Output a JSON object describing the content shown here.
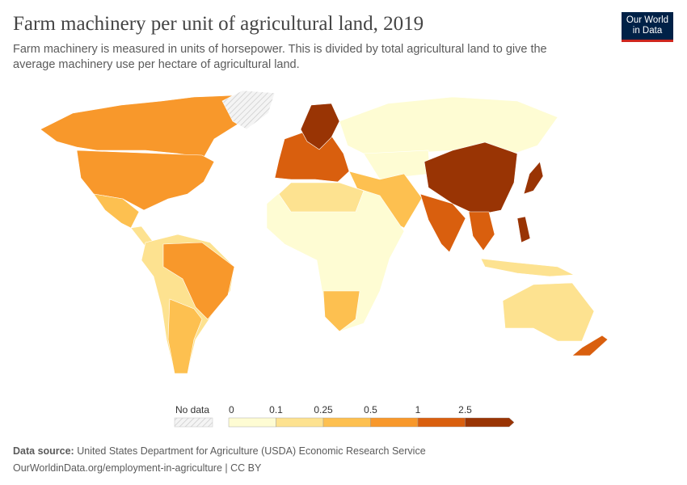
{
  "header": {
    "title": "Farm machinery per unit of agricultural land, 2019",
    "subtitle": "Farm machinery is measured in units of horsepower. This is divided by total agricultural land to give the average machinery use per hectare of agricultural land.",
    "logo": [
      "Our World",
      "in Data"
    ]
  },
  "legend": {
    "no_data_label": "No data",
    "no_data_color": "#eeeeee",
    "ticks": [
      "0",
      "0.1",
      "0.25",
      "0.5",
      "1",
      "2.5"
    ],
    "colors": [
      "#fefcd3",
      "#fde290",
      "#fdc050",
      "#f8982b",
      "#d95f0e",
      "#993404"
    ]
  },
  "footer": {
    "source_label": "Data source:",
    "source": "United States Department for Agriculture (USDA) Economic Research Service",
    "url": "OurWorldinData.org/employment-in-agriculture | CC BY"
  }
}
